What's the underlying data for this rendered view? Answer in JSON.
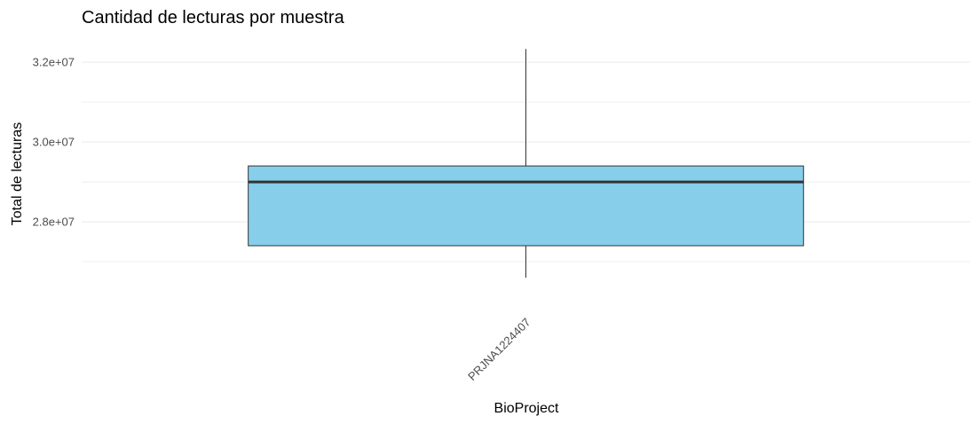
{
  "chart_data": {
    "type": "box",
    "title": "Cantidad de lecturas por muestra",
    "xlabel": "BioProject",
    "ylabel": "Total de lecturas",
    "categories": [
      "PRJNA1224407"
    ],
    "boxes": [
      {
        "category": "PRJNA1224407",
        "whisker_low": 26600000,
        "q1": 27400000,
        "median": 29000000,
        "q3": 29400000,
        "whisker_high": 32330000
      }
    ],
    "ylim": [
      26000000,
      32670000
    ],
    "yticks": [
      28000000,
      30000000,
      32000000
    ],
    "ytick_labels": [
      "2.8e+07",
      "3.0e+07",
      "3.2e+07"
    ],
    "grid": true,
    "fill_color": "#87ceeb",
    "stroke_color": "#333333"
  }
}
